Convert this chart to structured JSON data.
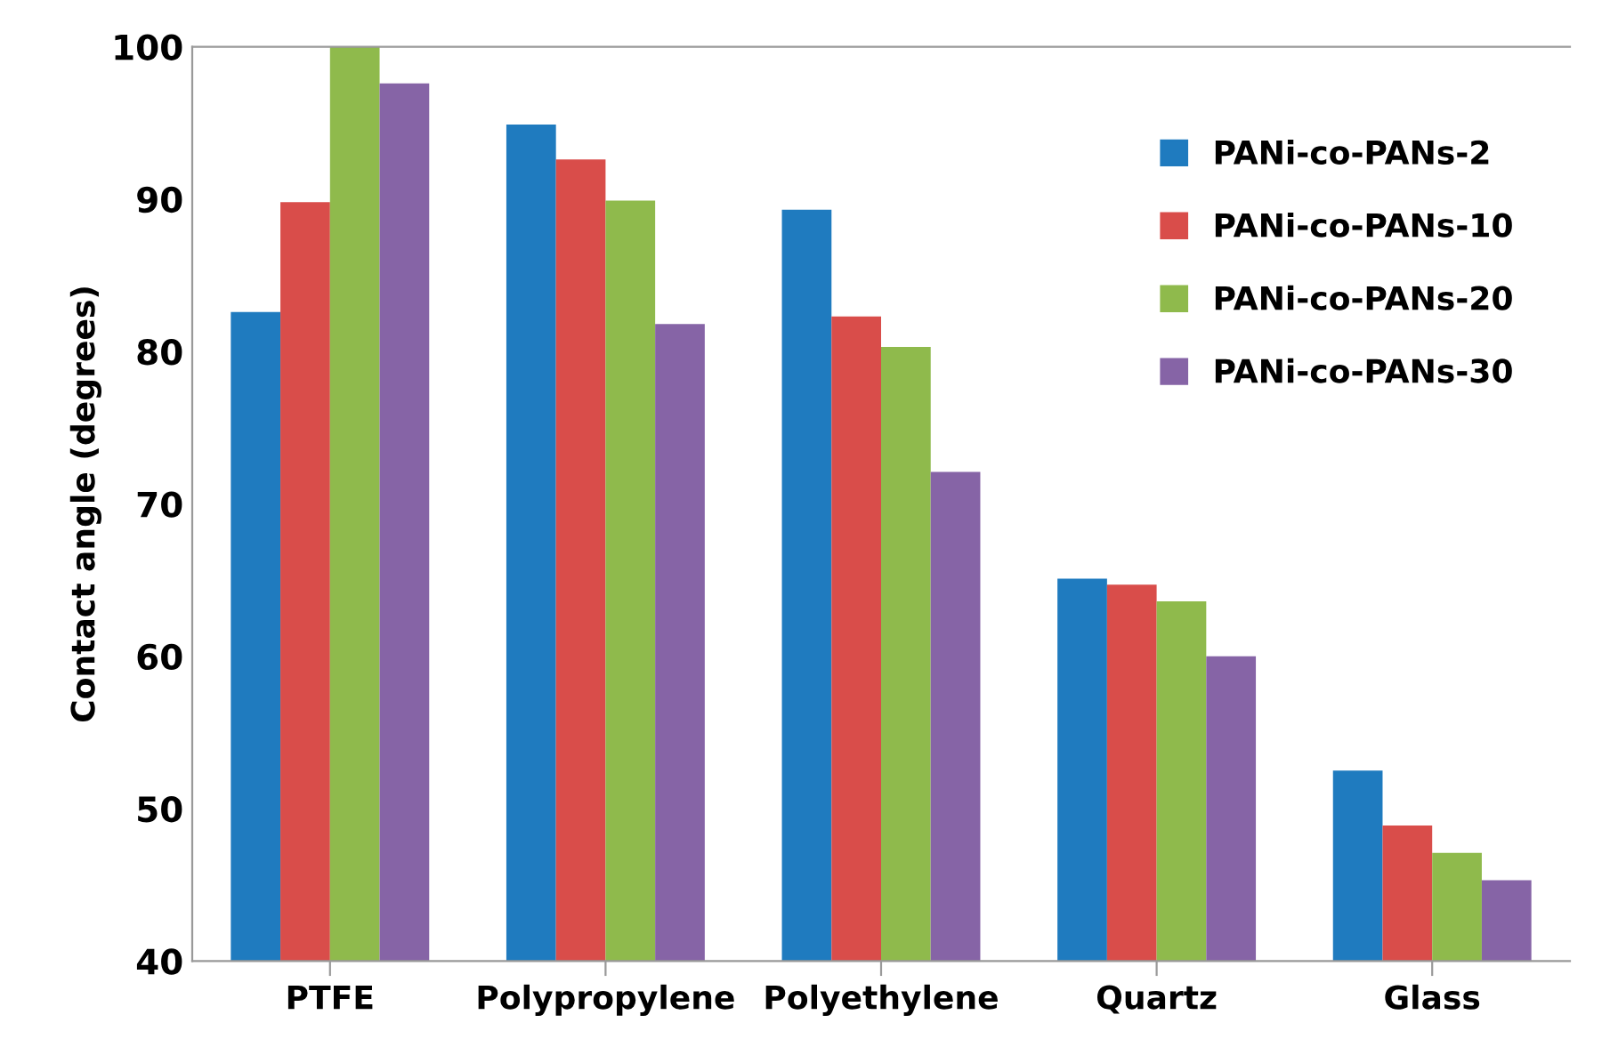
{
  "chart_data": {
    "type": "bar",
    "ylabel": "Contact angle (degrees)",
    "categories": [
      "PTFE",
      "Polypropylene",
      "Polyethylene",
      "Quartz",
      "Glass"
    ],
    "series": [
      {
        "name": "PANi-co-PANs-2",
        "color": "#1f7bbf",
        "values": [
          82.6,
          94.9,
          89.3,
          65.1,
          52.5
        ]
      },
      {
        "name": "PANi-co-PANs-10",
        "color": "#d94d4a",
        "values": [
          89.8,
          92.6,
          82.3,
          64.7,
          48.9
        ]
      },
      {
        "name": "PANi-co-PANs-20",
        "color": "#8fba4c",
        "values": [
          100,
          89.9,
          80.3,
          63.6,
          47.1
        ]
      },
      {
        "name": "PANi-co-PANs-30",
        "color": "#8664a6",
        "values": [
          97.6,
          81.8,
          72.1,
          60.0,
          45.3
        ]
      }
    ],
    "ylim": [
      40,
      100
    ],
    "yticks": [
      40,
      50,
      60,
      70,
      80,
      90,
      100
    ],
    "grid": false,
    "legend": "top right"
  }
}
